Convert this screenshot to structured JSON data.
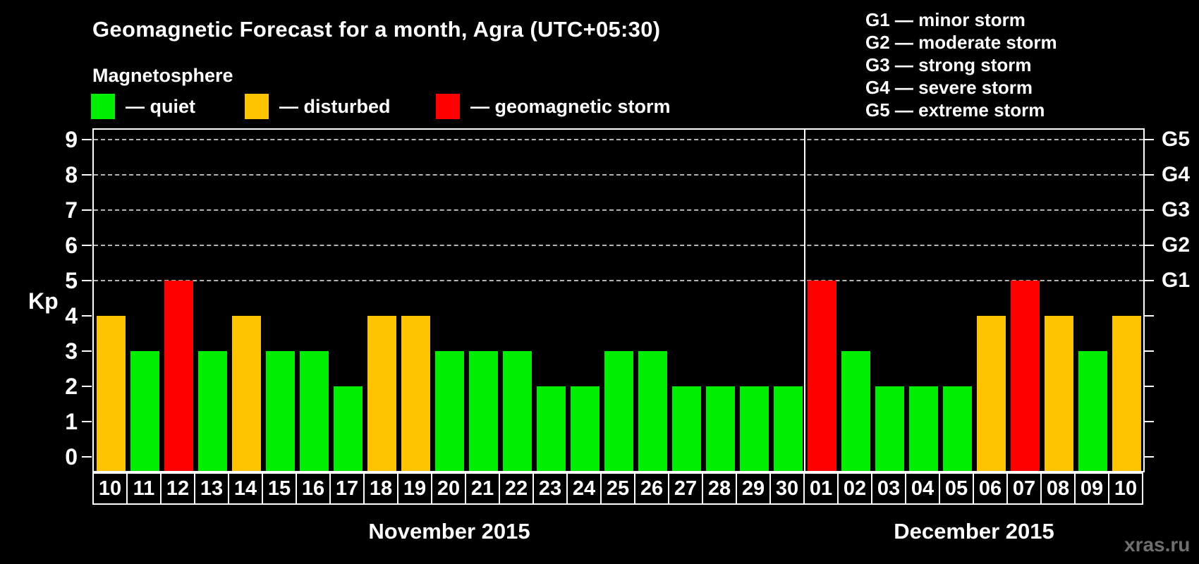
{
  "title": "Geomagnetic Forecast for a month, Agra (UTC+05:30)",
  "subtitle": "Magnetosphere",
  "legend": {
    "items": [
      {
        "name": "quiet",
        "label": "— quiet",
        "color": "#00ee00"
      },
      {
        "name": "disturbed",
        "label": "— disturbed",
        "color": "#ffc400"
      },
      {
        "name": "geomagnetic-storm",
        "label": "— geomagnetic storm",
        "color": "#ff0000"
      }
    ]
  },
  "g_scale_legend": [
    "G1 — minor storm",
    "G2 — moderate storm",
    "G3 — strong storm",
    "G4 — severe storm",
    "G5 — extreme storm"
  ],
  "axis": {
    "kp_label": "Kp",
    "kp_ticks": [
      0,
      1,
      2,
      3,
      4,
      5,
      6,
      7,
      8,
      9
    ],
    "gridlines_at": [
      5,
      6,
      7,
      8,
      9
    ],
    "right_labels": [
      {
        "kp": 5,
        "label": "G1"
      },
      {
        "kp": 6,
        "label": "G2"
      },
      {
        "kp": 7,
        "label": "G3"
      },
      {
        "kp": 8,
        "label": "G4"
      },
      {
        "kp": 9,
        "label": "G5"
      }
    ]
  },
  "months": [
    {
      "label": "November 2015",
      "days": 21
    },
    {
      "label": "December 2015",
      "days": 10
    }
  ],
  "watermark": "xras.ru",
  "chart_data": {
    "type": "bar",
    "title": "Geomagnetic Forecast for a month, Agra (UTC+05:30)",
    "xlabel": "",
    "ylabel": "Kp",
    "ylim": [
      0,
      9
    ],
    "grid": "dashed horizontal at Kp 5-9",
    "legend_position": "top",
    "status_colors": {
      "quiet": "#00ee00",
      "disturbed": "#ffc400",
      "storm": "#ff0000"
    },
    "points": [
      {
        "month": "November 2015",
        "day": "10",
        "kp": 4,
        "status": "disturbed"
      },
      {
        "month": "November 2015",
        "day": "11",
        "kp": 3,
        "status": "quiet"
      },
      {
        "month": "November 2015",
        "day": "12",
        "kp": 5,
        "status": "storm"
      },
      {
        "month": "November 2015",
        "day": "13",
        "kp": 3,
        "status": "quiet"
      },
      {
        "month": "November 2015",
        "day": "14",
        "kp": 4,
        "status": "disturbed"
      },
      {
        "month": "November 2015",
        "day": "15",
        "kp": 3,
        "status": "quiet"
      },
      {
        "month": "November 2015",
        "day": "16",
        "kp": 3,
        "status": "quiet"
      },
      {
        "month": "November 2015",
        "day": "17",
        "kp": 2,
        "status": "quiet"
      },
      {
        "month": "November 2015",
        "day": "18",
        "kp": 4,
        "status": "disturbed"
      },
      {
        "month": "November 2015",
        "day": "19",
        "kp": 4,
        "status": "disturbed"
      },
      {
        "month": "November 2015",
        "day": "20",
        "kp": 3,
        "status": "quiet"
      },
      {
        "month": "November 2015",
        "day": "21",
        "kp": 3,
        "status": "quiet"
      },
      {
        "month": "November 2015",
        "day": "22",
        "kp": 3,
        "status": "quiet"
      },
      {
        "month": "November 2015",
        "day": "23",
        "kp": 2,
        "status": "quiet"
      },
      {
        "month": "November 2015",
        "day": "24",
        "kp": 2,
        "status": "quiet"
      },
      {
        "month": "November 2015",
        "day": "25",
        "kp": 3,
        "status": "quiet"
      },
      {
        "month": "November 2015",
        "day": "26",
        "kp": 3,
        "status": "quiet"
      },
      {
        "month": "November 2015",
        "day": "27",
        "kp": 2,
        "status": "quiet"
      },
      {
        "month": "November 2015",
        "day": "28",
        "kp": 2,
        "status": "quiet"
      },
      {
        "month": "November 2015",
        "day": "29",
        "kp": 2,
        "status": "quiet"
      },
      {
        "month": "November 2015",
        "day": "30",
        "kp": 2,
        "status": "quiet"
      },
      {
        "month": "December 2015",
        "day": "01",
        "kp": 5,
        "status": "storm"
      },
      {
        "month": "December 2015",
        "day": "02",
        "kp": 3,
        "status": "quiet"
      },
      {
        "month": "December 2015",
        "day": "03",
        "kp": 2,
        "status": "quiet"
      },
      {
        "month": "December 2015",
        "day": "04",
        "kp": 2,
        "status": "quiet"
      },
      {
        "month": "December 2015",
        "day": "05",
        "kp": 2,
        "status": "quiet"
      },
      {
        "month": "December 2015",
        "day": "06",
        "kp": 4,
        "status": "disturbed"
      },
      {
        "month": "December 2015",
        "day": "07",
        "kp": 5,
        "status": "storm"
      },
      {
        "month": "December 2015",
        "day": "08",
        "kp": 4,
        "status": "disturbed"
      },
      {
        "month": "December 2015",
        "day": "09",
        "kp": 3,
        "status": "quiet"
      },
      {
        "month": "December 2015",
        "day": "10",
        "kp": 4,
        "status": "disturbed"
      }
    ]
  }
}
